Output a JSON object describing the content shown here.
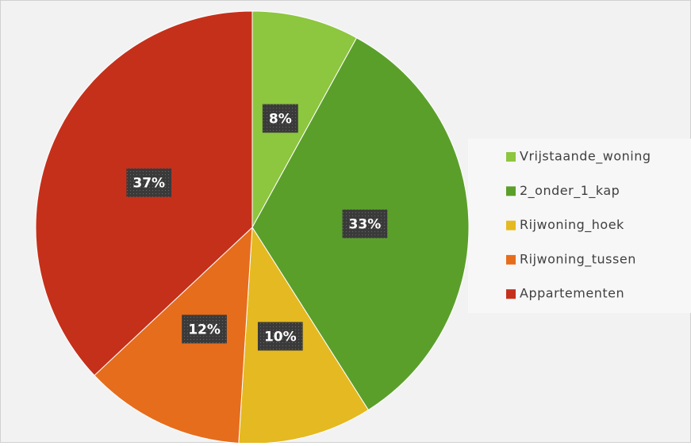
{
  "chart_data": {
    "type": "pie",
    "categories": [
      "Vrijstaande_woning",
      "2_onder_1_kap",
      "Rijwoning_hoek",
      "Rijwoning_tussen",
      "Appartementen"
    ],
    "values": [
      8,
      33,
      10,
      12,
      37
    ],
    "value_labels": [
      "8%",
      "33%",
      "10%",
      "12%",
      "37%"
    ],
    "colors": [
      "#8dc63f",
      "#5b9f2b",
      "#e5b921",
      "#e66d1c",
      "#c5301b"
    ],
    "legend": "right"
  }
}
